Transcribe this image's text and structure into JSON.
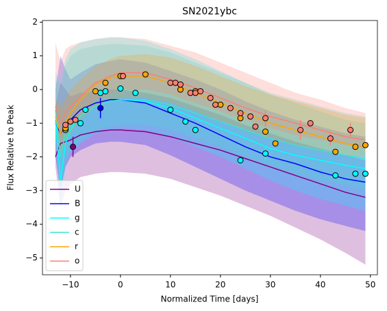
{
  "chart_data": {
    "type": "line",
    "title": "SN2021ybc",
    "xlabel": "Normalized Time [days]",
    "ylabel": "Flux Relative to Peak",
    "xlim": [
      -15.6,
      51.4
    ],
    "ylim": [
      -5.5,
      2.05
    ],
    "xticks": [
      {
        "value": -10,
        "label": "−10"
      },
      0,
      10,
      20,
      30,
      40,
      50
    ],
    "yticks": [
      {
        "value": -5,
        "label": "−5"
      },
      {
        "value": -4,
        "label": "−4"
      },
      {
        "value": -3,
        "label": "−3"
      },
      {
        "value": -2,
        "label": "−2"
      },
      {
        "value": -1,
        "label": "−1"
      },
      0,
      1,
      2
    ],
    "legend": "lower left",
    "x": [
      -13,
      -12,
      -11,
      -10,
      -8,
      -5,
      -2,
      0,
      5,
      10,
      15,
      20,
      25,
      30,
      35,
      40,
      45,
      49
    ],
    "series": [
      {
        "name": "U",
        "color": "#800080",
        "values": [
          -2.0,
          -1.6,
          -1.55,
          -1.5,
          -1.35,
          -1.25,
          -1.2,
          -1.2,
          -1.25,
          -1.4,
          -1.6,
          -1.8,
          -2.05,
          -2.3,
          -2.55,
          -2.8,
          -3.05,
          -3.2
        ],
        "band_lower": [
          -2.3,
          -3.5,
          -3.0,
          -2.8,
          -2.6,
          -2.5,
          -2.45,
          -2.45,
          -2.5,
          -2.65,
          -2.9,
          -3.15,
          -3.45,
          -3.75,
          -4.1,
          -4.45,
          -4.85,
          -5.2
        ],
        "band_upper": [
          -0.5,
          0.2,
          0.0,
          -0.2,
          -0.1,
          -0.05,
          0.0,
          0.0,
          -0.1,
          -0.25,
          -0.5,
          -0.75,
          -1.05,
          -1.3,
          -1.55,
          -1.75,
          -1.95,
          -2.1
        ],
        "points_x": [
          -9.5
        ],
        "points_y": [
          -1.7
        ],
        "points_err": [
          0.3
        ]
      },
      {
        "name": "B",
        "color": "#0000ff",
        "values": [
          -1.0,
          -1.3,
          -1.1,
          -0.9,
          -0.6,
          -0.4,
          -0.3,
          -0.3,
          -0.4,
          -0.7,
          -1.0,
          -1.35,
          -1.7,
          -2.0,
          -2.2,
          -2.45,
          -2.65,
          -2.75
        ],
        "band_lower": [
          -2.0,
          -3.0,
          -2.3,
          -2.0,
          -1.8,
          -1.6,
          -1.55,
          -1.55,
          -1.65,
          -1.95,
          -2.3,
          -2.65,
          -3.0,
          -3.3,
          -3.6,
          -3.85,
          -4.05,
          -4.2
        ],
        "band_upper": [
          0.0,
          1.0,
          0.6,
          0.3,
          0.5,
          0.75,
          0.85,
          0.9,
          0.8,
          0.55,
          0.3,
          0.0,
          -0.35,
          -0.65,
          -0.9,
          -1.1,
          -1.3,
          -1.4
        ],
        "points_x": [
          -4
        ],
        "points_y": [
          -0.55
        ],
        "points_err": [
          0.3
        ]
      },
      {
        "name": "g",
        "color": "#00ffff",
        "values": [
          -0.9,
          -2.7,
          -1.6,
          -1.2,
          -0.8,
          -0.5,
          -0.35,
          -0.3,
          -0.35,
          -0.55,
          -0.85,
          -1.15,
          -1.45,
          -1.75,
          -1.95,
          -2.1,
          -2.25,
          -2.35
        ],
        "band_lower": [
          -1.5,
          -3.5,
          -2.3,
          -1.9,
          -1.6,
          -1.3,
          -1.2,
          -1.15,
          -1.2,
          -1.4,
          -1.7,
          -2.0,
          -2.35,
          -2.7,
          -3.0,
          -3.25,
          -3.45,
          -3.6
        ],
        "band_upper": [
          0.5,
          0.2,
          0.9,
          1.2,
          1.4,
          1.5,
          1.55,
          1.55,
          1.45,
          1.2,
          0.9,
          0.55,
          0.2,
          -0.15,
          -0.4,
          -0.65,
          -0.9,
          -1.0
        ],
        "points_x": [
          -11,
          -8,
          -7,
          -4,
          -3,
          0,
          3,
          10,
          13,
          15,
          24,
          29,
          43,
          47,
          49
        ],
        "points_y": [
          -1.2,
          -1.0,
          -0.6,
          -0.1,
          -0.05,
          0.03,
          -0.1,
          -0.6,
          -0.95,
          -1.2,
          -2.1,
          -1.9,
          -2.55,
          -2.5,
          -2.5
        ],
        "points_err": [
          null,
          null,
          null,
          null,
          null,
          null,
          null,
          null,
          null,
          null,
          null,
          0.2,
          null,
          null,
          null
        ]
      },
      {
        "name": "c",
        "color": "#40e0d0",
        "values": [
          -0.6,
          -2.0,
          -1.3,
          -1.1,
          -0.8,
          -0.5,
          -0.35,
          -0.3,
          -0.3,
          -0.45,
          -0.7,
          -0.95,
          -1.2,
          -1.45,
          -1.65,
          -1.8,
          -1.95,
          -2.05
        ],
        "band_lower": [
          -1.3,
          -3.0,
          -2.0,
          -1.8,
          -1.5,
          -1.2,
          -1.1,
          -1.05,
          -1.05,
          -1.2,
          -1.45,
          -1.7,
          -2.0,
          -2.25,
          -2.5,
          -2.7,
          -2.85,
          -3.0
        ],
        "band_upper": [
          0.3,
          0.0,
          0.7,
          1.0,
          1.2,
          1.3,
          1.35,
          1.35,
          1.3,
          1.1,
          0.8,
          0.5,
          0.2,
          -0.1,
          -0.3,
          -0.5,
          -0.7,
          -0.8
        ],
        "points_x": [],
        "points_y": [],
        "points_err": []
      },
      {
        "name": "r",
        "color": "#ffa500",
        "values": [
          -0.8,
          -1.3,
          -1.0,
          -0.7,
          -0.3,
          0.15,
          0.35,
          0.4,
          0.4,
          0.2,
          -0.1,
          -0.4,
          -0.7,
          -1.0,
          -1.2,
          -1.4,
          -1.6,
          -1.7
        ],
        "band_lower": [
          -1.3,
          -2.0,
          -1.6,
          -1.3,
          -0.9,
          -0.5,
          -0.3,
          -0.25,
          -0.25,
          -0.4,
          -0.65,
          -0.95,
          -1.2,
          -1.45,
          -1.65,
          -1.8,
          -1.95,
          -2.0
        ],
        "band_upper": [
          -0.3,
          -0.5,
          -0.3,
          0.0,
          0.3,
          0.7,
          0.9,
          1.0,
          1.05,
          0.95,
          0.7,
          0.4,
          0.1,
          -0.15,
          -0.35,
          -0.55,
          -0.75,
          -0.85
        ],
        "points_x": [
          -11,
          -5,
          -3,
          0,
          5,
          12,
          15,
          20,
          24,
          29,
          31,
          43,
          47,
          49
        ],
        "points_y": [
          -1.15,
          -0.05,
          0.2,
          0.4,
          0.45,
          0.0,
          -0.05,
          -0.45,
          -0.85,
          -1.25,
          -1.6,
          -1.85,
          -1.7,
          -1.65
        ],
        "points_err": [
          null,
          null,
          null,
          null,
          null,
          null,
          null,
          null,
          null,
          0.2,
          null,
          null,
          null,
          null
        ]
      },
      {
        "name": "o",
        "color": "#fa8072",
        "values": [
          -0.5,
          -1.0,
          -0.7,
          -0.5,
          -0.2,
          0.2,
          0.4,
          0.5,
          0.5,
          0.3,
          0.05,
          -0.25,
          -0.55,
          -0.8,
          -1.0,
          -1.2,
          -1.4,
          -1.5
        ],
        "band_lower": [
          -1.0,
          -1.5,
          -1.2,
          -1.0,
          -0.7,
          -0.3,
          -0.1,
          0.0,
          0.0,
          -0.15,
          -0.4,
          -0.65,
          -0.9,
          -1.15,
          -1.35,
          -1.5,
          -1.65,
          -1.75
        ],
        "band_upper": [
          1.4,
          0.8,
          1.2,
          1.3,
          1.4,
          1.5,
          1.55,
          1.55,
          1.5,
          1.3,
          1.1,
          0.8,
          0.5,
          0.2,
          -0.1,
          -0.3,
          -0.55,
          -0.7
        ],
        "points_x": [
          -11,
          -10,
          -9,
          0.5,
          10,
          11,
          12,
          14,
          15,
          16,
          18,
          19,
          22,
          24,
          26,
          27,
          29,
          36,
          38,
          42,
          46
        ],
        "points_y": [
          -1.05,
          -0.95,
          -0.9,
          0.4,
          0.2,
          0.2,
          0.15,
          -0.1,
          -0.1,
          -0.05,
          -0.25,
          -0.45,
          -0.55,
          -0.7,
          -0.8,
          -1.1,
          -0.85,
          -1.2,
          -1.0,
          -1.45,
          -1.2
        ],
        "points_err": [
          null,
          null,
          null,
          null,
          null,
          null,
          null,
          null,
          null,
          null,
          null,
          null,
          null,
          null,
          null,
          null,
          0.25,
          0.3,
          null,
          0.2,
          0.2
        ]
      }
    ]
  }
}
